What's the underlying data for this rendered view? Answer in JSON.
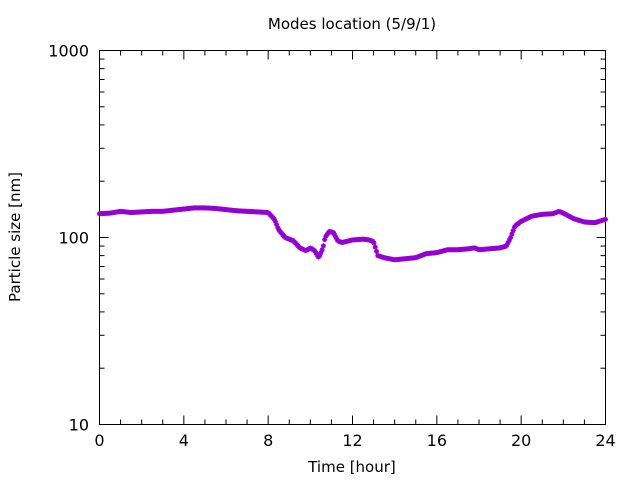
{
  "chart_data": {
    "type": "scatter",
    "title": "Modes location (5/9/1)",
    "xlabel": "Time [hour]",
    "ylabel": "Particle size [nm]",
    "xlim": [
      0,
      24
    ],
    "ylim": [
      10,
      1000
    ],
    "yscale": "log",
    "grid": false,
    "legend": "none",
    "x_ticks": [
      {
        "value": 0,
        "label": "0"
      },
      {
        "value": 4,
        "label": "4"
      },
      {
        "value": 8,
        "label": "8"
      },
      {
        "value": 12,
        "label": "12"
      },
      {
        "value": 16,
        "label": "16"
      },
      {
        "value": 20,
        "label": "20"
      },
      {
        "value": 24,
        "label": "24"
      }
    ],
    "y_ticks": [
      {
        "value": 10,
        "label": "10"
      },
      {
        "value": 100,
        "label": "100"
      },
      {
        "value": 1000,
        "label": "1000"
      }
    ],
    "marker_color": "#9400d3",
    "series": [
      {
        "points": [
          [
            0.0,
            134
          ],
          [
            0.5,
            135
          ],
          [
            1.0,
            138
          ],
          [
            1.5,
            136
          ],
          [
            2.0,
            137
          ],
          [
            2.5,
            138
          ],
          [
            3.0,
            138
          ],
          [
            3.5,
            140
          ],
          [
            4.0,
            142
          ],
          [
            4.5,
            144
          ],
          [
            5.0,
            144
          ],
          [
            5.5,
            143
          ],
          [
            6.0,
            141
          ],
          [
            6.5,
            139
          ],
          [
            7.0,
            138
          ],
          [
            7.5,
            137
          ],
          [
            8.0,
            136
          ],
          [
            8.3,
            125
          ],
          [
            8.5,
            110
          ],
          [
            8.8,
            100
          ],
          [
            9.2,
            96
          ],
          [
            9.5,
            88
          ],
          [
            9.8,
            85
          ],
          [
            10.0,
            88
          ],
          [
            10.2,
            85
          ],
          [
            10.4,
            78
          ],
          [
            10.6,
            88
          ],
          [
            10.7,
            100
          ],
          [
            10.9,
            108
          ],
          [
            11.1,
            106
          ],
          [
            11.3,
            96
          ],
          [
            11.5,
            94
          ],
          [
            12.0,
            97
          ],
          [
            12.5,
            98
          ],
          [
            12.8,
            97
          ],
          [
            13.0,
            95
          ],
          [
            13.2,
            80
          ],
          [
            13.5,
            78
          ],
          [
            14.0,
            76
          ],
          [
            14.5,
            77
          ],
          [
            15.0,
            78
          ],
          [
            15.5,
            82
          ],
          [
            16.0,
            83
          ],
          [
            16.5,
            86
          ],
          [
            17.0,
            86
          ],
          [
            17.5,
            87
          ],
          [
            17.8,
            88
          ],
          [
            18.0,
            86
          ],
          [
            18.5,
            87
          ],
          [
            19.0,
            88
          ],
          [
            19.3,
            90
          ],
          [
            19.5,
            100
          ],
          [
            19.7,
            115
          ],
          [
            20.0,
            122
          ],
          [
            20.5,
            130
          ],
          [
            21.0,
            133
          ],
          [
            21.5,
            134
          ],
          [
            21.8,
            138
          ],
          [
            22.0,
            135
          ],
          [
            22.5,
            126
          ],
          [
            23.0,
            121
          ],
          [
            23.5,
            120
          ],
          [
            24.0,
            125
          ]
        ]
      }
    ]
  }
}
